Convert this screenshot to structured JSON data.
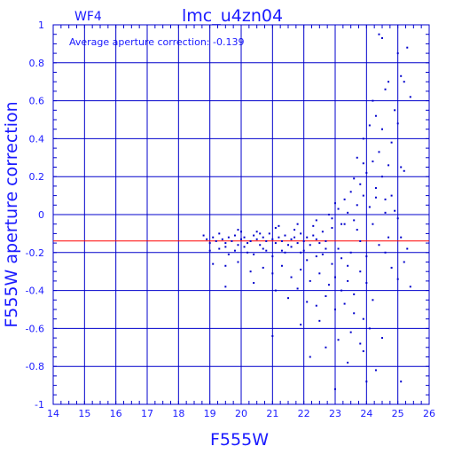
{
  "chart_data": {
    "type": "scatter",
    "title": "lmc_u4zn04",
    "panel_label": "WF4",
    "annotation": "Average aperture correction: -0.139",
    "xlabel": "F555W",
    "ylabel": "F555W aperture correction",
    "xlim": [
      14,
      26
    ],
    "ylim": [
      -1,
      1
    ],
    "x_ticks": [
      "14",
      "15",
      "16",
      "17",
      "18",
      "19",
      "20",
      "21",
      "22",
      "23",
      "24",
      "25",
      "26"
    ],
    "y_ticks": [
      "1",
      "0.8",
      "0.6",
      "0.4",
      "0.2",
      "0",
      "-0.2",
      "-0.4",
      "-0.6",
      "-0.8",
      "-1"
    ],
    "grid": true,
    "reference_line": {
      "y": -0.139,
      "color": "#ff0000"
    },
    "colors": {
      "axis": "#0000cc",
      "points": "#0000cc",
      "text": "#1a1aff",
      "reference": "#ff0000"
    },
    "points": [
      [
        18.8,
        -0.11
      ],
      [
        18.9,
        -0.13
      ],
      [
        19.0,
        -0.15
      ],
      [
        19.1,
        -0.12
      ],
      [
        19.2,
        -0.14
      ],
      [
        19.3,
        -0.1
      ],
      [
        19.4,
        -0.13
      ],
      [
        19.5,
        -0.15
      ],
      [
        19.6,
        -0.12
      ],
      [
        19.7,
        -0.14
      ],
      [
        19.8,
        -0.11
      ],
      [
        19.9,
        -0.16
      ],
      [
        20.0,
        -0.13
      ],
      [
        20.1,
        -0.12
      ],
      [
        20.2,
        -0.15
      ],
      [
        20.3,
        -0.14
      ],
      [
        20.4,
        -0.11
      ],
      [
        20.5,
        -0.13
      ],
      [
        20.6,
        -0.16
      ],
      [
        20.7,
        -0.12
      ],
      [
        20.8,
        -0.14
      ],
      [
        20.9,
        -0.1
      ],
      [
        21.0,
        -0.13
      ],
      [
        21.1,
        -0.15
      ],
      [
        21.2,
        -0.12
      ],
      [
        21.3,
        -0.14
      ],
      [
        21.4,
        -0.11
      ],
      [
        21.5,
        -0.16
      ],
      [
        21.6,
        -0.13
      ],
      [
        21.7,
        -0.12
      ],
      [
        21.8,
        -0.15
      ],
      [
        21.9,
        -0.1
      ],
      [
        22.0,
        -0.14
      ],
      [
        22.1,
        -0.12
      ],
      [
        22.2,
        -0.16
      ],
      [
        22.3,
        -0.11
      ],
      [
        22.4,
        -0.13
      ],
      [
        22.5,
        -0.15
      ],
      [
        22.6,
        -0.09
      ],
      [
        22.7,
        -0.14
      ],
      [
        19.0,
        -0.19
      ],
      [
        19.3,
        -0.18
      ],
      [
        19.6,
        -0.21
      ],
      [
        19.9,
        -0.08
      ],
      [
        20.2,
        -0.2
      ],
      [
        20.5,
        -0.09
      ],
      [
        20.8,
        -0.19
      ],
      [
        21.1,
        -0.07
      ],
      [
        21.4,
        -0.2
      ],
      [
        21.7,
        -0.08
      ],
      [
        22.0,
        -0.19
      ],
      [
        22.3,
        -0.06
      ],
      [
        22.6,
        -0.21
      ],
      [
        22.9,
        -0.07
      ],
      [
        23.1,
        -0.18
      ],
      [
        23.3,
        -0.05
      ],
      [
        23.5,
        -0.2
      ],
      [
        23.7,
        -0.08
      ],
      [
        19.1,
        -0.26
      ],
      [
        19.5,
        -0.27
      ],
      [
        19.9,
        -0.25
      ],
      [
        20.3,
        -0.3
      ],
      [
        20.7,
        -0.28
      ],
      [
        21.0,
        -0.31
      ],
      [
        21.3,
        -0.27
      ],
      [
        21.6,
        -0.33
      ],
      [
        21.9,
        -0.29
      ],
      [
        22.2,
        -0.35
      ],
      [
        22.5,
        -0.31
      ],
      [
        22.8,
        -0.37
      ],
      [
        23.0,
        -0.33
      ],
      [
        23.2,
        -0.4
      ],
      [
        23.4,
        -0.35
      ],
      [
        23.6,
        -0.42
      ],
      [
        23.8,
        -0.3
      ],
      [
        24.0,
        -0.36
      ],
      [
        19.5,
        -0.38
      ],
      [
        20.4,
        -0.36
      ],
      [
        21.1,
        -0.4
      ],
      [
        21.5,
        -0.44
      ],
      [
        21.8,
        -0.39
      ],
      [
        22.1,
        -0.46
      ],
      [
        22.4,
        -0.48
      ],
      [
        22.7,
        -0.43
      ],
      [
        23.0,
        -0.5
      ],
      [
        23.3,
        -0.47
      ],
      [
        23.6,
        -0.52
      ],
      [
        23.9,
        -0.55
      ],
      [
        24.2,
        -0.45
      ],
      [
        21.0,
        -0.64
      ],
      [
        21.9,
        -0.58
      ],
      [
        22.5,
        -0.56
      ],
      [
        23.1,
        -0.66
      ],
      [
        23.5,
        -0.62
      ],
      [
        23.8,
        -0.68
      ],
      [
        24.1,
        -0.6
      ],
      [
        22.2,
        -0.75
      ],
      [
        22.7,
        -0.7
      ],
      [
        23.0,
        -0.92
      ],
      [
        23.4,
        -0.78
      ],
      [
        23.9,
        -0.72
      ],
      [
        24.0,
        -0.88
      ],
      [
        24.3,
        -0.82
      ],
      [
        24.5,
        -0.65
      ],
      [
        25.1,
        -0.88
      ],
      [
        22.9,
        -0.02
      ],
      [
        23.1,
        0.03
      ],
      [
        23.2,
        -0.05
      ],
      [
        23.3,
        0.08
      ],
      [
        23.4,
        0.01
      ],
      [
        23.5,
        0.12
      ],
      [
        23.6,
        -0.03
      ],
      [
        23.7,
        0.05
      ],
      [
        23.8,
        0.16
      ],
      [
        23.9,
        0.1
      ],
      [
        24.0,
        0.22
      ],
      [
        24.1,
        0.04
      ],
      [
        24.2,
        0.28
      ],
      [
        24.3,
        0.14
      ],
      [
        24.4,
        0.33
      ],
      [
        24.5,
        0.2
      ],
      [
        24.6,
        0.08
      ],
      [
        24.7,
        0.26
      ],
      [
        24.8,
        0.38
      ],
      [
        24.9,
        0.02
      ],
      [
        23.7,
        0.3
      ],
      [
        23.9,
        0.4
      ],
      [
        24.1,
        0.47
      ],
      [
        24.3,
        0.52
      ],
      [
        24.2,
        0.6
      ],
      [
        24.5,
        0.45
      ],
      [
        24.6,
        0.66
      ],
      [
        24.7,
        0.7
      ],
      [
        24.9,
        0.55
      ],
      [
        25.0,
        0.48
      ],
      [
        24.4,
        0.95
      ],
      [
        24.5,
        0.93
      ],
      [
        25.0,
        0.85
      ],
      [
        25.1,
        0.73
      ],
      [
        25.2,
        0.7
      ],
      [
        25.3,
        0.88
      ],
      [
        25.4,
        0.62
      ],
      [
        25.1,
        0.25
      ],
      [
        25.2,
        0.23
      ],
      [
        24.8,
        0.1
      ],
      [
        25.0,
        -0.02
      ],
      [
        25.1,
        -0.12
      ],
      [
        25.2,
        -0.25
      ],
      [
        25.3,
        -0.18
      ],
      [
        25.4,
        -0.38
      ],
      [
        24.6,
        -0.2
      ],
      [
        24.8,
        -0.28
      ],
      [
        25.0,
        -0.34
      ],
      [
        24.7,
        -0.12
      ],
      [
        24.2,
        -0.05
      ],
      [
        24.4,
        -0.16
      ],
      [
        24.0,
        -0.22
      ],
      [
        23.8,
        -0.14
      ],
      [
        24.6,
        0.01
      ],
      [
        23.4,
        -0.27
      ],
      [
        23.2,
        -0.23
      ],
      [
        22.9,
        -0.26
      ],
      [
        22.7,
        -0.18
      ],
      [
        22.4,
        -0.22
      ],
      [
        22.1,
        -0.24
      ],
      [
        21.9,
        -0.2
      ],
      [
        21.6,
        -0.17
      ],
      [
        21.3,
        -0.19
      ],
      [
        21.0,
        -0.22
      ],
      [
        20.7,
        -0.18
      ],
      [
        20.4,
        -0.21
      ],
      [
        20.1,
        -0.17
      ],
      [
        19.8,
        -0.19
      ],
      [
        19.5,
        -0.17
      ],
      [
        20.0,
        -0.09
      ],
      [
        20.6,
        -0.1
      ],
      [
        21.2,
        -0.06
      ],
      [
        21.8,
        -0.05
      ],
      [
        22.4,
        -0.03
      ],
      [
        22.8,
        0.0
      ],
      [
        23.0,
        0.06
      ],
      [
        23.6,
        0.19
      ],
      [
        23.9,
        0.27
      ],
      [
        24.3,
        0.09
      ]
    ]
  }
}
